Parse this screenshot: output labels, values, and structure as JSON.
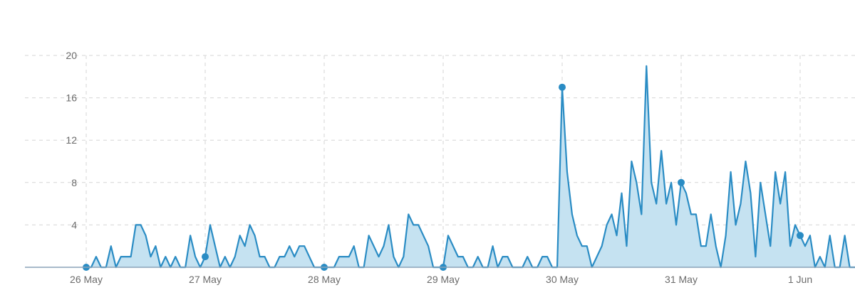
{
  "chart_data": {
    "type": "area",
    "title": "",
    "xlabel": "",
    "ylabel": "",
    "x_tick_labels": [
      "26 May",
      "27 May",
      "28 May",
      "29 May",
      "30 May",
      "31 May",
      "1 Jun"
    ],
    "y_tick_labels": [
      "4",
      "8",
      "12",
      "16",
      "20"
    ],
    "y_ticks": [
      4,
      8,
      12,
      16,
      20
    ],
    "ylim": [
      0,
      20.7
    ],
    "xlim_days": [
      -0.4,
      6.35
    ],
    "grid": true,
    "legend": "none",
    "series": [
      {
        "color": "#2a8cc4",
        "fill": "#c5e2f1",
        "step_hours": 1,
        "start": "26 May 00:00",
        "values": [
          0,
          0,
          1,
          0,
          0,
          2,
          0,
          1,
          1,
          1,
          4,
          4,
          3,
          1,
          2,
          0,
          1,
          0,
          1,
          0,
          0,
          3,
          1,
          0,
          1,
          4,
          2,
          0,
          1,
          0,
          1,
          3,
          2,
          4,
          3,
          1,
          1,
          0,
          0,
          1,
          1,
          2,
          1,
          2,
          2,
          1,
          0,
          0,
          0,
          0,
          0,
          1,
          1,
          1,
          2,
          0,
          0,
          3,
          2,
          1,
          2,
          4,
          1,
          0,
          1,
          5,
          4,
          4,
          3,
          2,
          0,
          0,
          0,
          3,
          2,
          1,
          1,
          0,
          0,
          1,
          0,
          0,
          2,
          0,
          1,
          1,
          0,
          0,
          0,
          1,
          0,
          0,
          1,
          1,
          0,
          0,
          17,
          9,
          5,
          3,
          2,
          2,
          0,
          1,
          2,
          4,
          5,
          3,
          7,
          2,
          10,
          8,
          5,
          19,
          8,
          6,
          11,
          6,
          8,
          4,
          8,
          7,
          5,
          5,
          2,
          2,
          5,
          2,
          0,
          3,
          9,
          4,
          6,
          10,
          7,
          1,
          8,
          5,
          2,
          9,
          6,
          9,
          2,
          4,
          3,
          2,
          3,
          0,
          1,
          0,
          3,
          0,
          0,
          3,
          0,
          0,
          0,
          0,
          0,
          0
        ]
      }
    ],
    "markers_every_hours": 24
  }
}
